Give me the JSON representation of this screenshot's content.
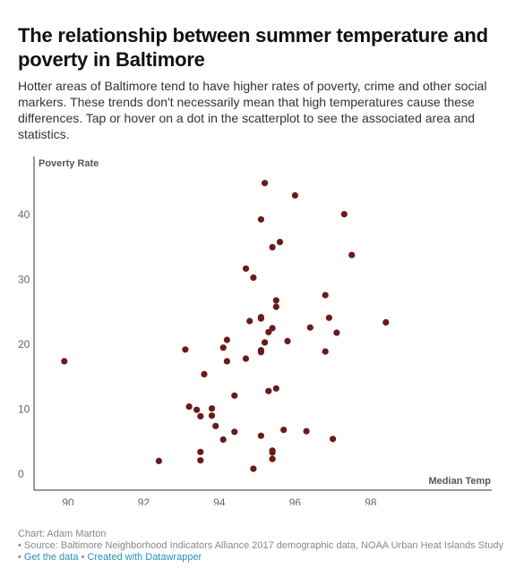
{
  "header": {
    "title": "The relationship between summer temperature and poverty in Baltimore",
    "description": "Hotter areas of Baltimore tend to have higher rates of poverty, crime and other social markers. These trends don't necessarily mean that high temperatures cause these differences. Tap or hover on a dot in the scatterplot to see the associated area and statistics."
  },
  "footer": {
    "credit": "Chart: Adam Marton",
    "source": "• Source: Baltimore Neighborhood Indicators Alliance 2017 demographic data, NOAA Urban Heat Islands Study",
    "links_bullet": "• ",
    "get_data": "Get the data",
    "separator": " • ",
    "created_with": "Created with Datawrapper"
  },
  "chart_data": {
    "type": "scatter",
    "title": "",
    "xlabel": "Median Temp",
    "ylabel": "Poverty Rate",
    "xlim": [
      89.1,
      101.2
    ],
    "ylim": [
      -2.5,
      49
    ],
    "xticks": [
      90,
      92,
      94,
      96,
      98
    ],
    "yticks": [
      0,
      10,
      20,
      30,
      40
    ],
    "grid": false,
    "marker_color": "#6b1a1a",
    "x": [
      89.9,
      92.4,
      93.1,
      93.2,
      93.4,
      93.5,
      93.5,
      93.5,
      93.6,
      93.8,
      93.8,
      93.9,
      94.1,
      94.1,
      94.2,
      94.2,
      94.4,
      94.4,
      94.7,
      94.7,
      94.8,
      94.9,
      94.9,
      95.1,
      95.1,
      95.1,
      95.1,
      95.1,
      95.1,
      95.2,
      95.2,
      95.3,
      95.3,
      95.4,
      95.4,
      95.4,
      95.4,
      95.4,
      95.5,
      95.5,
      95.5,
      95.6,
      95.7,
      95.8,
      96.0,
      96.3,
      96.4,
      96.8,
      96.8,
      96.9,
      97.0,
      97.1,
      97.3,
      97.5,
      98.4
    ],
    "y": [
      17.4,
      2.0,
      19.2,
      10.4,
      9.9,
      3.4,
      2.1,
      8.9,
      15.4,
      10.1,
      9.0,
      7.4,
      19.5,
      5.3,
      20.7,
      17.4,
      6.5,
      12.1,
      31.7,
      17.8,
      23.6,
      30.3,
      0.8,
      39.3,
      18.8,
      19.1,
      24.2,
      24.0,
      5.9,
      44.9,
      20.3,
      21.9,
      12.8,
      35.0,
      22.5,
      3.6,
      2.3,
      3.3,
      26.8,
      13.2,
      25.8,
      35.8,
      6.8,
      20.5,
      43.0,
      6.6,
      22.6,
      27.6,
      18.9,
      24.1,
      5.4,
      21.8,
      40.1,
      33.8,
      23.4
    ]
  }
}
